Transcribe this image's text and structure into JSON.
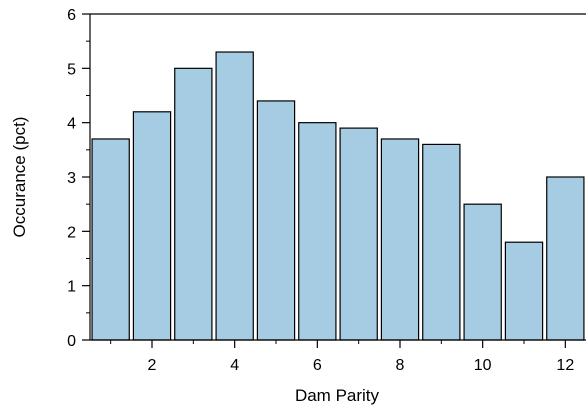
{
  "chart_data": {
    "type": "bar",
    "xlabel": "Dam Parity",
    "ylabel": "Occurance (pct)",
    "x": [
      1,
      2,
      3,
      4,
      5,
      6,
      7,
      8,
      9,
      10,
      11,
      12
    ],
    "values": [
      3.7,
      4.2,
      5.0,
      5.3,
      4.4,
      4.0,
      3.9,
      3.7,
      3.6,
      2.5,
      1.8,
      3.0
    ],
    "x_ticks": [
      2,
      4,
      6,
      8,
      10,
      12
    ],
    "y_ticks": [
      0,
      1,
      2,
      3,
      4,
      5,
      6
    ],
    "xlim": [
      0.5,
      12.5
    ],
    "ylim": [
      0,
      6
    ],
    "grid": false,
    "bar_color": "#a6cce3",
    "bar_edge_color": "#000000"
  }
}
